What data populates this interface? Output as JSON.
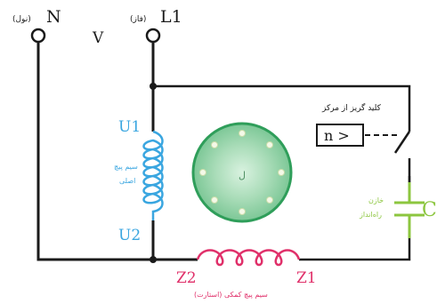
{
  "terminals": {
    "neutral": {
      "label": "N",
      "sublabel": "(نول)"
    },
    "phase": {
      "label": "L1",
      "sublabel": "(فاز)"
    }
  },
  "voltage_label": "V",
  "main_winding": {
    "top_label": "U1",
    "bottom_label": "U2",
    "caption": [
      "سیم پیچ",
      "اصلی"
    ]
  },
  "aux_winding": {
    "left_label": "Z2",
    "right_label": "Z1",
    "caption": "سیم پیچ کمکی (استارت)"
  },
  "rotor": {
    "label": "ل"
  },
  "centrifugal_switch": {
    "caption": "کلید گریز از مرکز",
    "box_text": "n >"
  },
  "capacitor": {
    "label": "C",
    "caption": [
      "خازن",
      "راه‌انداز"
    ]
  },
  "colors": {
    "wire": "#1a1a1a",
    "main_winding": "#3aa6e0",
    "aux_winding": "#e0306a",
    "rotor_fill": "#8fd0a4",
    "rotor_ring": "#2f9e5a",
    "capacitor": "#8cc63f"
  }
}
